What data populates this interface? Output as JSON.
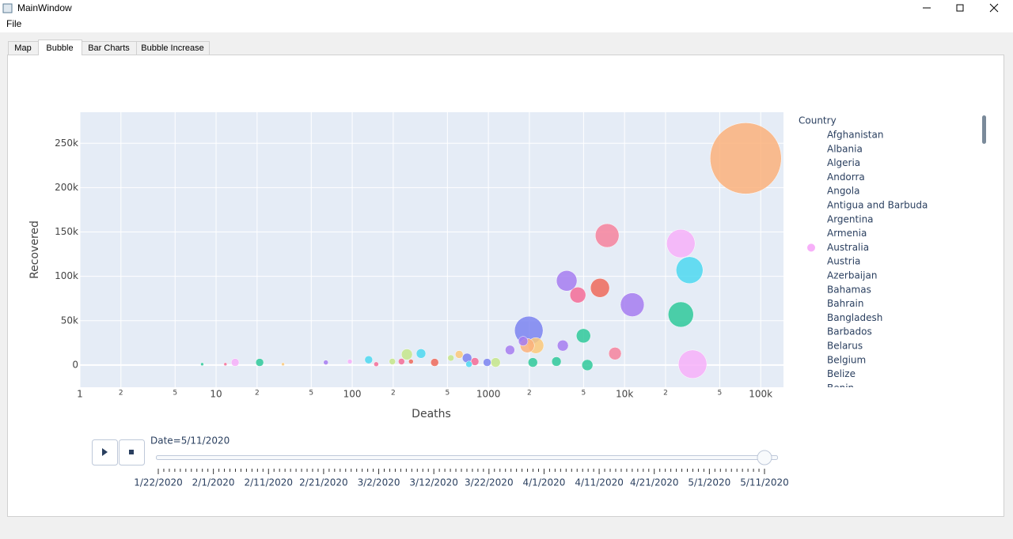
{
  "window": {
    "title": "MainWindow"
  },
  "menu": [
    "File"
  ],
  "tabs": [
    "Map",
    "Bubble",
    "Bar Charts",
    "Bubble Increase"
  ],
  "chart_data": {
    "type": "scatter",
    "x_label": "Deaths",
    "y_label": "Recovered",
    "log_x": true,
    "grid": true,
    "xlim": [
      1,
      147000
    ],
    "ylim": [
      -25000,
      285000
    ],
    "xticks": [
      1,
      2,
      5,
      10,
      {
        "value": 20,
        "label": "2"
      },
      {
        "value": 50,
        "label": "5"
      },
      100,
      {
        "value": 200,
        "label": "2"
      },
      {
        "value": 500,
        "label": "5"
      },
      1000,
      {
        "value": 2000,
        "label": "2"
      },
      {
        "value": 5000,
        "label": "5"
      },
      {
        "value": 10000,
        "label": "10k"
      },
      {
        "value": 20000,
        "label": "2"
      },
      {
        "value": 50000,
        "label": "5"
      },
      {
        "value": 100000,
        "label": "100k"
      }
    ],
    "yticks": [
      0,
      {
        "value": 50000,
        "label": "50k"
      },
      {
        "value": 100000,
        "label": "100k"
      },
      {
        "value": 150000,
        "label": "150k"
      },
      {
        "value": 200000,
        "label": "200k"
      },
      {
        "value": 250000,
        "label": "250k"
      }
    ],
    "x": [
      77600,
      7450,
      25900,
      30000,
      3760,
      6600,
      4540,
      11400,
      25900,
      1980,
      2230,
      1930,
      4990,
      3520,
      8510,
      31600,
      5330,
      3160,
      2120,
      1800,
      1440,
      697,
      1130,
      979,
      610,
      320,
      252,
      403,
      796,
      530,
      132,
      197,
      20.9,
      13.8,
      64,
      7.9,
      31,
      96,
      720,
      230,
      270,
      150,
      11.7
    ],
    "values": [
      233000,
      146000,
      137000,
      107000,
      95000,
      87000,
      79000,
      68000,
      57000,
      39000,
      22000,
      22000,
      33000,
      22000,
      13000,
      1000,
      0,
      4000,
      3000,
      27000,
      17000,
      8000,
      3000,
      3000,
      12000,
      13000,
      12000,
      3000,
      4000,
      8000,
      6000,
      4000,
      3000,
      3000,
      3000,
      1000,
      1000,
      4000,
      1000,
      4000,
      4000,
      1000,
      1000
    ],
    "sizes": [
      45,
      15,
      18,
      17,
      13,
      12,
      10,
      15,
      16,
      18,
      10,
      9,
      9,
      7,
      8,
      18,
      7,
      6,
      6,
      6,
      6,
      6,
      6,
      5,
      5,
      6,
      7,
      5,
      5,
      4,
      5,
      4,
      5,
      5,
      3,
      2,
      2,
      3,
      4,
      4,
      3,
      3,
      2
    ],
    "colors": [
      "#fbb27b",
      "#f6829c",
      "#f7b0f9",
      "#4ed8f0",
      "#a67cf0",
      "#ef6a5a",
      "#f46c96",
      "#a67cf0",
      "#2fc99a",
      "#7b84f0",
      "#fcc97a",
      "#fbb27b",
      "#2fc99a",
      "#a67cf0",
      "#f6829c",
      "#f7b0f9",
      "#2fc99a",
      "#2fc99a",
      "#2fc99a",
      "#a67cf0",
      "#a67cf0",
      "#7b84f0",
      "#c5e68a",
      "#7b84f0",
      "#fcc97a",
      "#4ed8f0",
      "#c5e68a",
      "#ef6a5a",
      "#f46c96",
      "#c5e68a",
      "#4ed8f0",
      "#c5e68a",
      "#2fc99a",
      "#f7b0f9",
      "#a67cf0",
      "#2fc99a",
      "#fcc97a",
      "#f7b0f9",
      "#4ed8f0",
      "#f46c96",
      "#ef6a5a",
      "#f46c96",
      "#f46c96"
    ],
    "legend": {
      "title": "Country",
      "items": [
        {
          "name": "Afghanistan"
        },
        {
          "name": "Albania"
        },
        {
          "name": "Algeria"
        },
        {
          "name": "Andorra"
        },
        {
          "name": "Angola"
        },
        {
          "name": "Antigua and Barbuda"
        },
        {
          "name": "Argentina"
        },
        {
          "name": "Armenia"
        },
        {
          "name": "Australia",
          "color": "#f7b0f9"
        },
        {
          "name": "Austria"
        },
        {
          "name": "Azerbaijan"
        },
        {
          "name": "Bahamas"
        },
        {
          "name": "Bahrain"
        },
        {
          "name": "Bangladesh"
        },
        {
          "name": "Barbados"
        },
        {
          "name": "Belarus"
        },
        {
          "name": "Belgium"
        },
        {
          "name": "Belize"
        },
        {
          "name": "Benin"
        }
      ]
    },
    "slider": {
      "current": "Date=5/11/2020",
      "ticks": [
        "1/22/2020",
        "2/1/2020",
        "2/11/2020",
        "2/21/2020",
        "3/2/2020",
        "3/12/2020",
        "3/22/2020",
        "4/1/2020",
        "4/11/2020",
        "4/21/2020",
        "5/1/2020",
        "5/11/2020"
      ]
    }
  }
}
